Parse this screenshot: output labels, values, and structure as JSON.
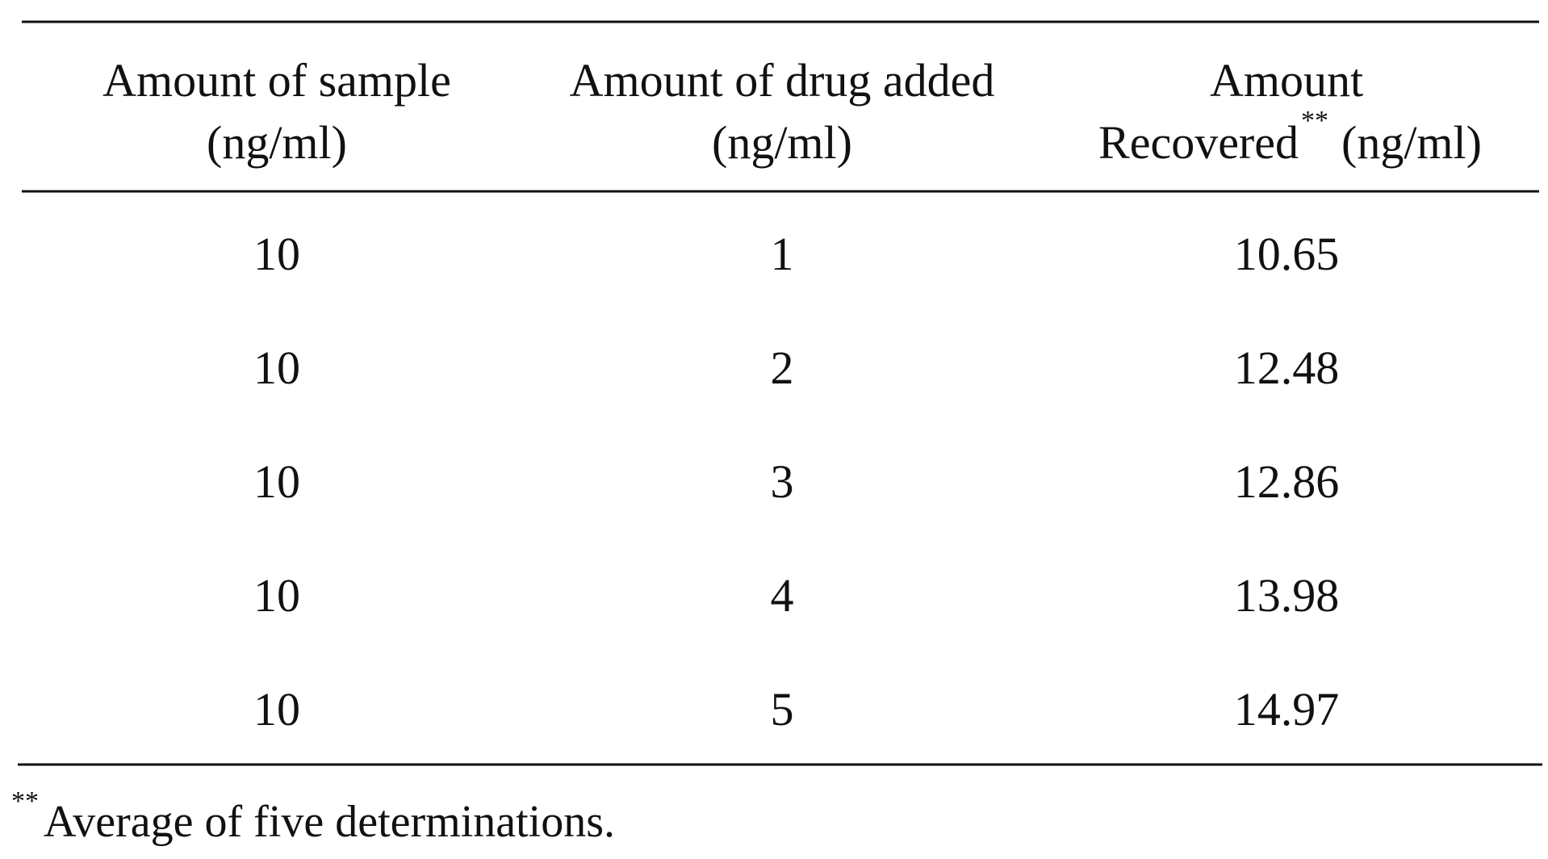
{
  "table": {
    "header": [
      [
        "Amount of sample",
        "(ng/ml)"
      ],
      [
        "Amount of drug added",
        "(ng/ml)"
      ],
      [
        "Amount",
        "Recovered",
        "**",
        "(ng/ml)"
      ]
    ],
    "rows": [
      [
        10,
        1,
        10.65
      ],
      [
        10,
        2,
        12.48
      ],
      [
        10,
        3,
        12.86
      ],
      [
        10,
        4,
        13.98
      ],
      [
        10,
        5,
        14.97
      ]
    ]
  },
  "footnote": {
    "mark": "**",
    "text": "Average of five determinations."
  }
}
